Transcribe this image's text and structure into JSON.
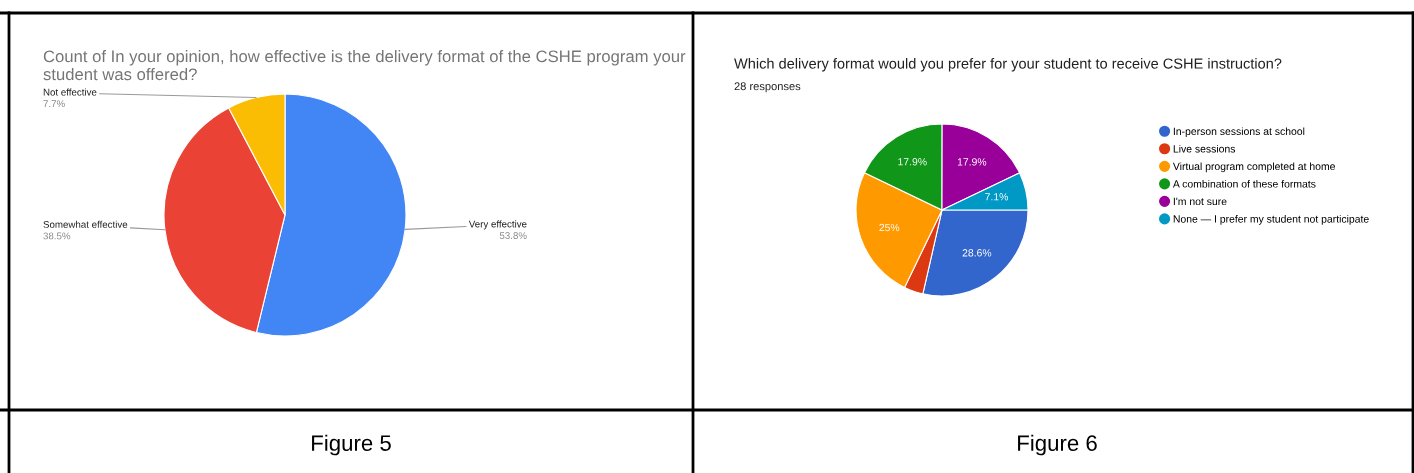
{
  "chart_data": [
    {
      "type": "pie",
      "title": "Count of In your opinion, how effective is the delivery format of the CSHE program your student was offered?",
      "categories": [
        "Very effective",
        "Somewhat effective",
        "Not effective"
      ],
      "values": [
        53.8,
        38.5,
        7.7
      ],
      "colors": [
        "#4285f4",
        "#ea4335",
        "#fbbc04"
      ],
      "value_labels": [
        "53.8%",
        "38.5%",
        "7.7%"
      ],
      "legend": false,
      "annotations": [
        "Figure 5"
      ]
    },
    {
      "type": "pie",
      "title": "Which delivery format would you prefer for your student to receive CSHE instruction?",
      "subtitle": "28 responses",
      "categories": [
        "In-person sessions at school",
        "Live sessions",
        "Virtual program completed at home",
        "A combination of these formats",
        "I'm not sure",
        "None — I prefer my student not participate"
      ],
      "values": [
        28.6,
        3.6,
        25,
        17.9,
        17.9,
        7.1
      ],
      "colors": [
        "#3366cc",
        "#dc3912",
        "#ff9900",
        "#109618",
        "#990099",
        "#0099c6"
      ],
      "value_labels": [
        "28.6%",
        null,
        "25%",
        "17.9%",
        "17.9%",
        "7.1%"
      ],
      "legend": "right",
      "annotations": [
        "Figure 6"
      ]
    }
  ]
}
